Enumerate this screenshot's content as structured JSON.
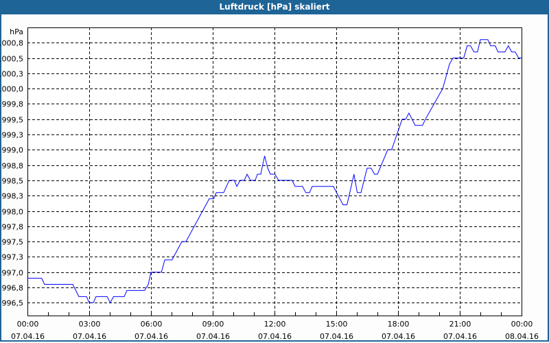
{
  "window": {
    "title": "Luftdruck [hPa] skaliert"
  },
  "colors": {
    "titlebar": "#1e6496",
    "line": "#0000ff",
    "grid": "#000000",
    "background": "#fcfdfc"
  },
  "chart_data": {
    "type": "line",
    "title": "Luftdruck [hPa] skaliert",
    "ylabel": "hPa",
    "xlabel": "",
    "ylim": [
      996.29,
      1001.0
    ],
    "xlim_hours": [
      0,
      24
    ],
    "grid": true,
    "y_ticks": [
      {
        "value": 996.5,
        "label": "996,5"
      },
      {
        "value": 996.75,
        "label": "996,8"
      },
      {
        "value": 997.0,
        "label": "997,0"
      },
      {
        "value": 997.25,
        "label": "997,3"
      },
      {
        "value": 997.5,
        "label": "997,5"
      },
      {
        "value": 997.75,
        "label": "997,8"
      },
      {
        "value": 998.0,
        "label": "998,0"
      },
      {
        "value": 998.25,
        "label": "998,3"
      },
      {
        "value": 998.5,
        "label": "998,5"
      },
      {
        "value": 998.75,
        "label": "998,8"
      },
      {
        "value": 999.0,
        "label": "999,0"
      },
      {
        "value": 999.25,
        "label": "999,3"
      },
      {
        "value": 999.5,
        "label": "999,5"
      },
      {
        "value": 999.75,
        "label": "999,8"
      },
      {
        "value": 1000.0,
        "label": "1000,0"
      },
      {
        "value": 1000.25,
        "label": "1000,3"
      },
      {
        "value": 1000.5,
        "label": "1000,5"
      },
      {
        "value": 1000.75,
        "label": "1000,8"
      }
    ],
    "x_ticks": [
      {
        "hour": 0,
        "time": "00:00",
        "date": "07.04.16"
      },
      {
        "hour": 3,
        "time": "03:00",
        "date": "07.04.16"
      },
      {
        "hour": 6,
        "time": "06:00",
        "date": "07.04.16"
      },
      {
        "hour": 9,
        "time": "09:00",
        "date": "07.04.16"
      },
      {
        "hour": 12,
        "time": "12:00",
        "date": "07.04.16"
      },
      {
        "hour": 15,
        "time": "15:00",
        "date": "07.04.16"
      },
      {
        "hour": 18,
        "time": "18:00",
        "date": "07.04.16"
      },
      {
        "hour": 21,
        "time": "21:00",
        "date": "07.04.16"
      },
      {
        "hour": 24,
        "time": "00:00",
        "date": "08.04.16"
      }
    ],
    "series": [
      {
        "points": [
          [
            0,
            996.9
          ],
          [
            0.69,
            996.9
          ],
          [
            0.83,
            996.8
          ],
          [
            2.2,
            996.8
          ],
          [
            2.5,
            996.6
          ],
          [
            2.87,
            996.6
          ],
          [
            3.0,
            996.5
          ],
          [
            3.2,
            996.5
          ],
          [
            3.33,
            996.6
          ],
          [
            3.87,
            996.6
          ],
          [
            4.02,
            996.5
          ],
          [
            4.18,
            996.6
          ],
          [
            4.7,
            996.6
          ],
          [
            4.83,
            996.7
          ],
          [
            5.69,
            996.7
          ],
          [
            5.87,
            996.8
          ],
          [
            6.0,
            997.0
          ],
          [
            6.51,
            997.0
          ],
          [
            6.67,
            997.2
          ],
          [
            7.02,
            997.2
          ],
          [
            7.5,
            997.5
          ],
          [
            7.7,
            997.5
          ],
          [
            8.83,
            998.2
          ],
          [
            9.05,
            998.2
          ],
          [
            9.17,
            998.3
          ],
          [
            9.53,
            998.3
          ],
          [
            9.8,
            998.5
          ],
          [
            10.05,
            998.5
          ],
          [
            10.17,
            998.4
          ],
          [
            10.33,
            998.5
          ],
          [
            10.53,
            998.5
          ],
          [
            10.67,
            998.6
          ],
          [
            10.83,
            998.5
          ],
          [
            11.06,
            998.5
          ],
          [
            11.17,
            998.6
          ],
          [
            11.33,
            998.6
          ],
          [
            11.52,
            998.9
          ],
          [
            11.67,
            998.7
          ],
          [
            11.8,
            998.6
          ],
          [
            12.02,
            998.6
          ],
          [
            12.2,
            998.5
          ],
          [
            12.86,
            998.5
          ],
          [
            13.0,
            998.4
          ],
          [
            13.36,
            998.4
          ],
          [
            13.52,
            998.3
          ],
          [
            13.7,
            998.3
          ],
          [
            13.83,
            998.4
          ],
          [
            14.86,
            998.4
          ],
          [
            15.33,
            998.1
          ],
          [
            15.52,
            998.1
          ],
          [
            15.86,
            998.6
          ],
          [
            16.02,
            998.3
          ],
          [
            16.2,
            998.3
          ],
          [
            16.5,
            998.7
          ],
          [
            16.69,
            998.7
          ],
          [
            16.86,
            998.6
          ],
          [
            17.0,
            998.6
          ],
          [
            17.5,
            999.0
          ],
          [
            17.69,
            999.0
          ],
          [
            18.2,
            999.5
          ],
          [
            18.37,
            999.5
          ],
          [
            18.53,
            999.6
          ],
          [
            18.83,
            999.4
          ],
          [
            19.19,
            999.4
          ],
          [
            19.33,
            999.5
          ],
          [
            20.17,
            1000.0
          ],
          [
            20.5,
            1000.4
          ],
          [
            20.67,
            1000.5
          ],
          [
            21.19,
            1000.5
          ],
          [
            21.36,
            1000.7
          ],
          [
            21.52,
            1000.7
          ],
          [
            21.69,
            1000.6
          ],
          [
            21.86,
            1000.6
          ],
          [
            22.0,
            1000.8
          ],
          [
            22.36,
            1000.8
          ],
          [
            22.5,
            1000.7
          ],
          [
            22.72,
            1000.7
          ],
          [
            22.86,
            1000.6
          ],
          [
            23.19,
            1000.6
          ],
          [
            23.36,
            1000.7
          ],
          [
            23.52,
            1000.6
          ],
          [
            23.69,
            1000.6
          ],
          [
            23.86,
            1000.5
          ],
          [
            24.0,
            1000.5
          ]
        ]
      }
    ]
  }
}
